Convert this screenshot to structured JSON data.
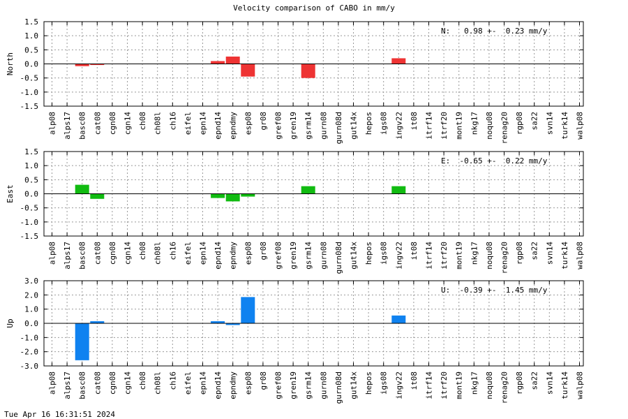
{
  "page": {
    "title": "Velocity comparison of CABO in mm/y",
    "timestamp": "Tue Apr 16 16:31:51 2024"
  },
  "chart_data": [
    {
      "type": "bar",
      "ylabel": "North",
      "annotation": "N:   0.98 +-  0.23 mm/y",
      "color": "#ee3333",
      "ylim": [
        -1.5,
        1.5
      ],
      "yticks": [
        1.5,
        1.0,
        0.5,
        0.0,
        -0.5,
        -1.0,
        -1.5
      ],
      "ytick_labels": [
        "1.5",
        "1.0",
        "0.5",
        "0.0",
        "-0.5",
        "-1.0",
        "-1.5"
      ],
      "grid": true,
      "categories": [
        "alp08",
        "alps17",
        "basc08",
        "cat08",
        "cgn08",
        "cgn14",
        "ch08",
        "ch08l",
        "ch16",
        "eifel",
        "epn14",
        "epnd14",
        "epndmy",
        "esp08",
        "gr08",
        "gref08",
        "gren19",
        "gsrm14",
        "gurn08",
        "gurn08d",
        "gut14x",
        "hepos",
        "igs08",
        "ingv22",
        "it08",
        "itrf14",
        "itrf20",
        "mont19",
        "nkg17",
        "noqu08",
        "renag20",
        "rgp08",
        "sa22",
        "svn14",
        "turk14",
        "walp08"
      ],
      "values": [
        0,
        0,
        -0.08,
        -0.04,
        0,
        0,
        0,
        0,
        0,
        0,
        0,
        0.1,
        0.26,
        -0.45,
        0,
        0,
        0,
        -0.5,
        0,
        0,
        0,
        0,
        0,
        0.2,
        0,
        0,
        0,
        0,
        0,
        0,
        0,
        0,
        0,
        0,
        0,
        0
      ]
    },
    {
      "type": "bar",
      "ylabel": "East",
      "annotation": "E:  -0.65 +-  0.22 mm/y",
      "color": "#11bb11",
      "ylim": [
        -1.5,
        1.5
      ],
      "yticks": [
        1.5,
        1.0,
        0.5,
        0.0,
        -0.5,
        -1.0,
        -1.5
      ],
      "ytick_labels": [
        "1.5",
        "1.0",
        "0.5",
        "0.0",
        "-0.5",
        "-1.0",
        "-1.5"
      ],
      "grid": true,
      "categories": [
        "alp08",
        "alps17",
        "basc08",
        "cat08",
        "cgn08",
        "cgn14",
        "ch08",
        "ch08l",
        "ch16",
        "eifel",
        "epn14",
        "epnd14",
        "epndmy",
        "esp08",
        "gr08",
        "gref08",
        "gren19",
        "gsrm14",
        "gurn08",
        "gurn08d",
        "gut14x",
        "hepos",
        "igs08",
        "ingv22",
        "it08",
        "itrf14",
        "itrf20",
        "mont19",
        "nkg17",
        "noqu08",
        "renag20",
        "rgp08",
        "sa22",
        "svn14",
        "turk14",
        "walp08"
      ],
      "values": [
        0,
        0,
        0.32,
        -0.18,
        0,
        0,
        0,
        0,
        0,
        0,
        0,
        -0.15,
        -0.27,
        -0.1,
        0,
        0,
        0,
        0.27,
        0,
        0,
        0,
        0,
        0,
        0.27,
        0,
        0,
        0,
        0,
        0,
        0,
        0,
        0,
        0,
        0,
        0,
        0
      ]
    },
    {
      "type": "bar",
      "ylabel": "Up",
      "annotation": "U:  -0.39 +-  1.45 mm/y",
      "color": "#0f82f0",
      "ylim": [
        -3.0,
        3.0
      ],
      "yticks": [
        3.0,
        2.0,
        1.0,
        0.0,
        -1.0,
        -2.0,
        -3.0
      ],
      "ytick_labels": [
        "3.0",
        "2.0",
        "1.0",
        "0.0",
        "-1.0",
        "-2.0",
        "-3.0"
      ],
      "grid": true,
      "categories": [
        "alp08",
        "alps17",
        "basc08",
        "cat08",
        "cgn08",
        "cgn14",
        "ch08",
        "ch08l",
        "ch16",
        "eifel",
        "epn14",
        "epnd14",
        "epndmy",
        "esp08",
        "gr08",
        "gref08",
        "gren19",
        "gsrm14",
        "gurn08",
        "gurn08d",
        "gut14x",
        "hepos",
        "igs08",
        "ingv22",
        "it08",
        "itrf14",
        "itrf20",
        "mont19",
        "nkg17",
        "noqu08",
        "renag20",
        "rgp08",
        "sa22",
        "svn14",
        "turk14",
        "walp08"
      ],
      "values": [
        0,
        0,
        -2.6,
        0.15,
        0,
        0,
        0,
        0,
        0,
        0,
        0,
        0.15,
        -0.12,
        1.85,
        0,
        0,
        0,
        0,
        0,
        0,
        0,
        0,
        0,
        0.55,
        0,
        0,
        0,
        0,
        0,
        0,
        0,
        0,
        0,
        0,
        0,
        0
      ]
    }
  ]
}
